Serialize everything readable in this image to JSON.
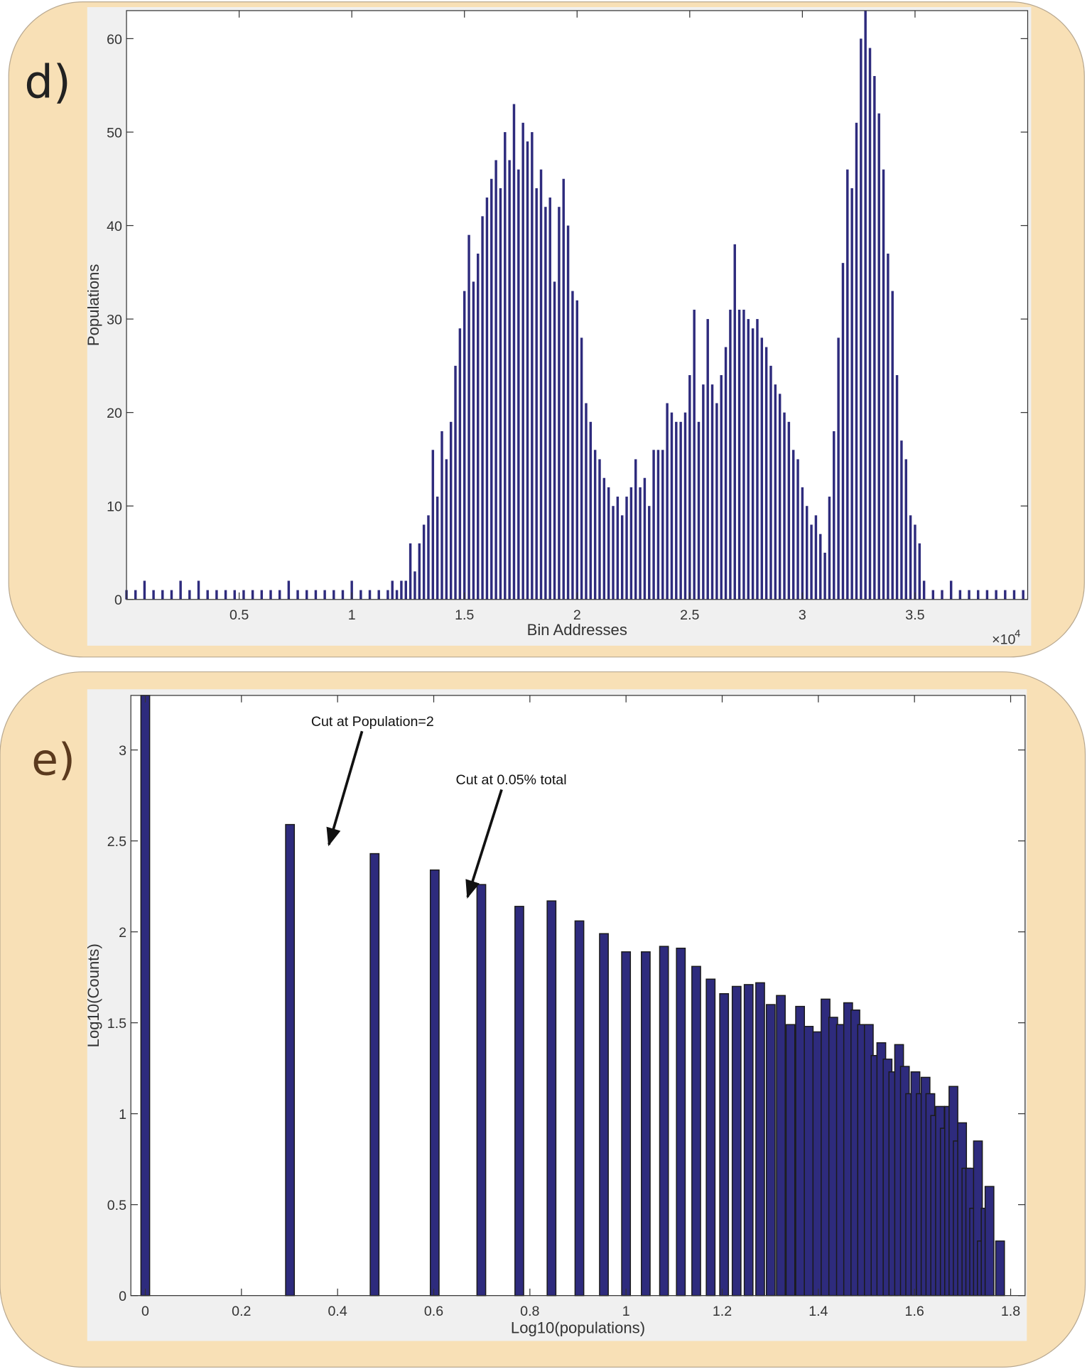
{
  "chart_data": [
    {
      "type": "bar",
      "panel_label": "d)",
      "xlabel": "Bin Addresses",
      "ylabel": "Populations",
      "x_multiplier": "×10",
      "x_multiplier_power": "4",
      "color": "#2e2b7d",
      "xlim": [
        0,
        40000
      ],
      "ylim": [
        0,
        63
      ],
      "xticks": [
        {
          "value": 5000,
          "label": "0.5"
        },
        {
          "value": 10000,
          "label": "1"
        },
        {
          "value": 15000,
          "label": "1.5"
        },
        {
          "value": 20000,
          "label": "2"
        },
        {
          "value": 25000,
          "label": "2.5"
        },
        {
          "value": 30000,
          "label": "3"
        },
        {
          "value": 35000,
          "label": "3.5"
        }
      ],
      "yticks": [
        0,
        10,
        20,
        30,
        40,
        50,
        60
      ],
      "x": [
        0,
        400,
        800,
        1200,
        1600,
        2000,
        2400,
        2800,
        3200,
        3600,
        4000,
        4400,
        4800,
        5200,
        5600,
        6000,
        6400,
        6800,
        7200,
        7600,
        8000,
        8400,
        8800,
        9200,
        9600,
        10000,
        10400,
        10800,
        11200,
        11600,
        11800,
        12000,
        12200,
        12400,
        12600,
        12800,
        13000,
        13200,
        13400,
        13600,
        13800,
        14000,
        14200,
        14400,
        14600,
        14800,
        15000,
        15200,
        15400,
        15600,
        15800,
        16000,
        16200,
        16400,
        16600,
        16800,
        17000,
        17200,
        17400,
        17600,
        17800,
        18000,
        18200,
        18400,
        18600,
        18800,
        19000,
        19200,
        19400,
        19600,
        19800,
        20000,
        20200,
        20400,
        20600,
        20800,
        21000,
        21200,
        21400,
        21600,
        21800,
        22000,
        22200,
        22400,
        22600,
        22800,
        23000,
        23200,
        23400,
        23600,
        23800,
        24000,
        24200,
        24400,
        24600,
        24800,
        25000,
        25200,
        25400,
        25600,
        25800,
        26000,
        26200,
        26400,
        26600,
        26800,
        27000,
        27200,
        27400,
        27600,
        27800,
        28000,
        28200,
        28400,
        28600,
        28800,
        29000,
        29200,
        29400,
        29600,
        29800,
        30000,
        30200,
        30400,
        30600,
        30800,
        31000,
        31200,
        31400,
        31600,
        31800,
        32000,
        32200,
        32400,
        32600,
        32800,
        33000,
        33200,
        33400,
        33600,
        33800,
        34000,
        34200,
        34400,
        34600,
        34800,
        35000,
        35200,
        35400,
        35800,
        36200,
        36600,
        37000,
        37400,
        37800,
        38200,
        38600,
        39000,
        39400,
        39800
      ],
      "values": [
        1,
        1,
        2,
        1,
        1,
        1,
        2,
        1,
        2,
        1,
        1,
        1,
        1,
        1,
        1,
        1,
        1,
        1,
        2,
        1,
        1,
        1,
        1,
        1,
        1,
        2,
        1,
        1,
        1,
        1,
        2,
        1,
        2,
        2,
        6,
        3,
        6,
        8,
        9,
        16,
        11,
        18,
        15,
        19,
        25,
        29,
        33,
        39,
        34,
        37,
        41,
        43,
        45,
        47,
        44,
        50,
        47,
        53,
        46,
        51,
        49,
        50,
        44,
        46,
        42,
        43,
        34,
        42,
        45,
        40,
        33,
        32,
        28,
        21,
        19,
        16,
        15,
        13,
        12,
        10,
        11,
        9,
        11,
        12,
        15,
        12,
        13,
        10,
        16,
        16,
        16,
        21,
        20,
        19,
        19,
        20,
        24,
        31,
        19,
        23,
        30,
        23,
        21,
        24,
        27,
        31,
        38,
        31,
        31,
        30,
        29,
        30,
        28,
        27,
        25,
        23,
        22,
        20,
        19,
        16,
        15,
        12,
        10,
        8,
        9,
        7,
        5,
        11,
        18,
        28,
        36,
        46,
        44,
        51,
        60,
        63,
        59,
        56,
        52,
        46,
        37,
        33,
        24,
        17,
        15,
        9,
        8,
        6,
        2,
        1,
        1,
        2,
        1,
        1,
        1,
        1,
        1,
        1,
        1,
        1
      ]
    },
    {
      "type": "bar",
      "panel_label": "e)",
      "xlabel": "Log10(populations)",
      "ylabel": "Log10(Counts)",
      "color": "#2e2b7d",
      "edgecolor": "#1a1a1a",
      "xlim": [
        -0.03,
        1.83
      ],
      "ylim": [
        0,
        3.3
      ],
      "xticks": [
        0,
        0.2,
        0.4,
        0.6,
        0.8,
        1,
        1.2,
        1.4,
        1.6,
        1.8
      ],
      "yticks": [
        0,
        0.5,
        1,
        1.5,
        2,
        2.5,
        3
      ],
      "annotations": [
        {
          "text": "Cut at Population=2"
        },
        {
          "text": "Cut at 0.05% total"
        }
      ],
      "x": [
        0,
        0.301,
        0.477,
        0.602,
        0.699,
        0.778,
        0.845,
        0.903,
        0.954,
        1,
        1.041,
        1.079,
        1.114,
        1.146,
        1.176,
        1.204,
        1.23,
        1.255,
        1.279,
        1.301,
        1.322,
        1.342,
        1.362,
        1.38,
        1.398,
        1.415,
        1.431,
        1.447,
        1.462,
        1.477,
        1.491,
        1.505,
        1.519,
        1.531,
        1.544,
        1.556,
        1.568,
        1.58,
        1.591,
        1.602,
        1.613,
        1.623,
        1.633,
        1.643,
        1.653,
        1.663,
        1.672,
        1.681,
        1.69,
        1.699,
        1.708,
        1.716,
        1.724,
        1.732,
        1.74,
        1.748,
        1.756,
        1.778
      ],
      "values": [
        3.3,
        2.59,
        2.43,
        2.34,
        2.26,
        2.14,
        2.17,
        2.06,
        1.99,
        1.89,
        1.89,
        1.92,
        1.91,
        1.81,
        1.74,
        1.66,
        1.7,
        1.71,
        1.72,
        1.6,
        1.65,
        1.49,
        1.59,
        1.48,
        1.45,
        1.63,
        1.53,
        1.49,
        1.61,
        1.57,
        1.49,
        1.49,
        1.32,
        1.39,
        1.3,
        1.23,
        1.38,
        1.26,
        1.11,
        1.23,
        1.11,
        1.2,
        1.11,
        0.99,
        1.04,
        0.92,
        1.04,
        1.15,
        0.85,
        0.95,
        0.7,
        0.7,
        0.48,
        0.85,
        0.3,
        0.48,
        0.6,
        0.3
      ]
    }
  ]
}
